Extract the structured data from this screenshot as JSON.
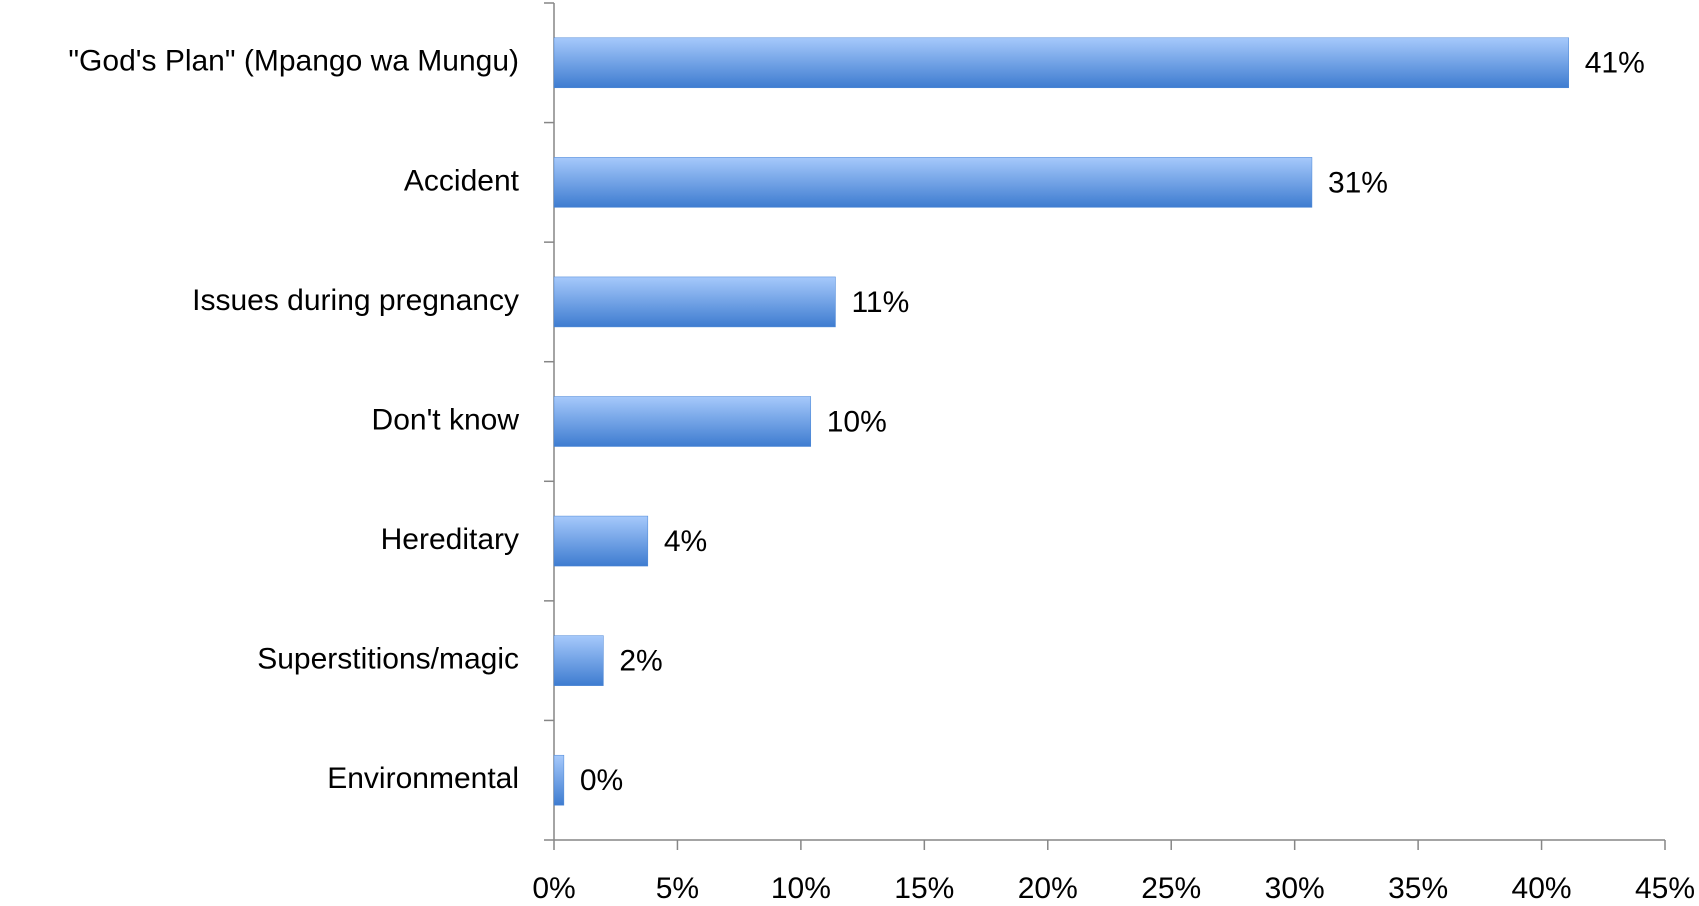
{
  "chart_data": {
    "type": "bar",
    "orientation": "horizontal",
    "categories": [
      "\"God's Plan\" (Mpango wa Mungu)",
      "Accident",
      "Issues during pregnancy",
      "Don't know",
      "Hereditary",
      "Superstitions/magic",
      "Environmental"
    ],
    "values": [
      41.1,
      30.7,
      11.4,
      10.4,
      3.8,
      2,
      0.4
    ],
    "value_labels": [
      "41%",
      "31%",
      "11%",
      "10%",
      "4%",
      "2%",
      "0%"
    ],
    "color": "#4a86d6",
    "xlim": [
      0,
      45
    ],
    "xticks": [
      {
        "value": 0,
        "label": "0%"
      },
      {
        "value": 5,
        "label": "5%"
      },
      {
        "value": 10,
        "label": "10%"
      },
      {
        "value": 15,
        "label": "15%"
      },
      {
        "value": 20,
        "label": "20%"
      },
      {
        "value": 25,
        "label": "25%"
      },
      {
        "value": 30,
        "label": "30%"
      },
      {
        "value": 35,
        "label": "35%"
      },
      {
        "value": 40,
        "label": "40%"
      },
      {
        "value": 45,
        "label": "45%"
      }
    ],
    "grid": false
  }
}
